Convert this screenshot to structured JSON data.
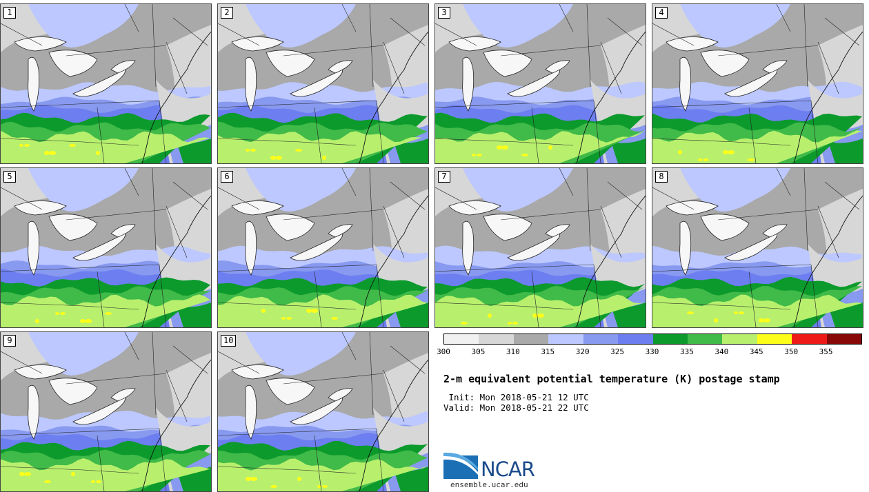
{
  "panels": [
    "1",
    "2",
    "3",
    "4",
    "5",
    "6",
    "7",
    "8",
    "9",
    "10"
  ],
  "colorbar": {
    "ticks": [
      "300",
      "305",
      "310",
      "315",
      "320",
      "325",
      "330",
      "335",
      "340",
      "345",
      "350",
      "355"
    ],
    "colors": [
      "#f1f1f1",
      "#d7d7d7",
      "#a9a9a9",
      "#bcc8ff",
      "#8899f0",
      "#6d7ef0",
      "#0c9a2c",
      "#40ba48",
      "#b8f06e",
      "#fdfd1a",
      "#ee1a1a",
      "#880808"
    ]
  },
  "title": "2-m equivalent potential temperature (K) postage stamp",
  "init": " Init: Mon 2018-05-21 12 UTC",
  "valid": "Valid: Mon 2018-05-21 22 UTC",
  "logo": {
    "text": "NCAR",
    "url": "ensemble.ucar.edu"
  }
}
